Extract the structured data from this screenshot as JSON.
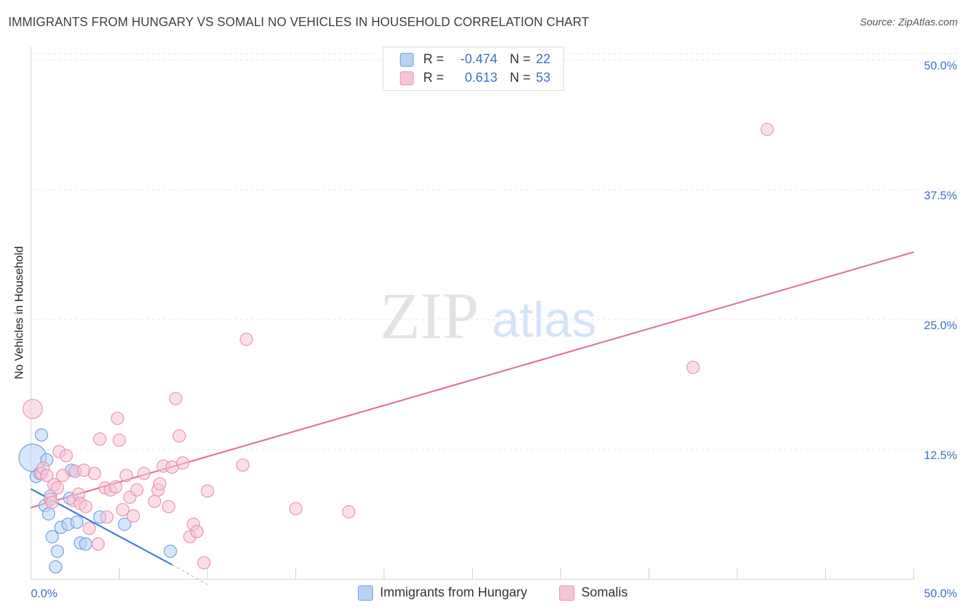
{
  "header": {
    "title": "IMMIGRANTS FROM HUNGARY VS SOMALI NO VEHICLES IN HOUSEHOLD CORRELATION CHART",
    "source": "Source: ZipAtlas.com"
  },
  "watermark": {
    "zip": "ZIP",
    "atlas": "atlas"
  },
  "legend": {
    "series": [
      {
        "r_label": "R =",
        "r_value": "-0.474",
        "n_label": "N =",
        "n_value": "22"
      },
      {
        "r_label": "R =",
        "r_value": "0.613",
        "n_label": "N =",
        "n_value": "53"
      }
    ]
  },
  "colors": {
    "blue_fill": "#b7d2f5",
    "blue_stroke": "#6c9fe0",
    "blue_line": "#3a78d4",
    "pink_fill": "#f7c5d6",
    "pink_stroke": "#ec8fb0",
    "pink_line": "#e07099",
    "tick_text": "#3a6fc4"
  },
  "chart_data": {
    "type": "scatter",
    "title": "IMMIGRANTS FROM HUNGARY VS SOMALI NO VEHICLES IN HOUSEHOLD CORRELATION CHART",
    "ylabel": "No Vehicles in Household",
    "xlim": [
      0,
      50
    ],
    "ylim": [
      0,
      50
    ],
    "x_tick_labels": [
      "0.0%",
      "50.0%"
    ],
    "y_ticks": [
      12.5,
      25,
      37.5,
      50
    ],
    "y_tick_labels": [
      "12.5%",
      "25.0%",
      "37.5%",
      "50.0%"
    ],
    "grid": true,
    "legend_placement": "top-center",
    "series": [
      {
        "name": "Immigrants from Hungary",
        "color": "#6c9fe0",
        "points": [
          [
            0.1,
            11.7,
            20
          ],
          [
            0.3,
            9.9,
            9
          ],
          [
            0.6,
            13.9,
            9
          ],
          [
            0.9,
            11.5,
            9
          ],
          [
            1.1,
            8.0,
            9
          ],
          [
            0.8,
            7.1,
            9
          ],
          [
            2.3,
            10.5,
            9
          ],
          [
            2.2,
            7.8,
            9
          ],
          [
            1.2,
            4.1,
            9
          ],
          [
            1.7,
            5.0,
            9
          ],
          [
            2.1,
            5.3,
            9
          ],
          [
            2.6,
            5.5,
            9
          ],
          [
            1.5,
            2.7,
            9
          ],
          [
            1.4,
            1.2,
            9
          ],
          [
            2.8,
            3.5,
            9
          ],
          [
            3.1,
            3.4,
            9
          ],
          [
            3.9,
            6.0,
            9
          ],
          [
            5.3,
            5.3,
            9
          ],
          [
            7.9,
            2.7,
            9
          ],
          [
            0.5,
            10.2,
            9
          ],
          [
            1.0,
            6.3,
            9
          ],
          [
            2.5,
            10.4,
            9
          ]
        ],
        "trend": {
          "x": [
            0,
            8.0
          ],
          "y": [
            8.7,
            1.4
          ],
          "dash_x": [
            8.0,
            10.0
          ],
          "dash_y": [
            1.4,
            -0.5
          ]
        }
      },
      {
        "name": "Somalis",
        "color": "#ec8fb0",
        "points": [
          [
            0.1,
            16.4,
            14
          ],
          [
            0.6,
            10.2,
            9
          ],
          [
            0.7,
            10.7,
            9
          ],
          [
            1.1,
            7.7,
            9
          ],
          [
            1.3,
            9.1,
            9
          ],
          [
            1.5,
            8.8,
            9
          ],
          [
            1.6,
            12.3,
            9
          ],
          [
            2.0,
            11.9,
            9
          ],
          [
            1.8,
            10.0,
            9
          ],
          [
            2.4,
            7.6,
            9
          ],
          [
            2.5,
            10.4,
            9
          ],
          [
            2.7,
            8.2,
            9
          ],
          [
            2.8,
            7.3,
            9
          ],
          [
            3.0,
            10.5,
            9
          ],
          [
            3.1,
            7.0,
            9
          ],
          [
            3.3,
            4.9,
            9
          ],
          [
            3.6,
            10.2,
            9
          ],
          [
            3.8,
            3.4,
            9
          ],
          [
            3.9,
            13.5,
            9
          ],
          [
            4.2,
            8.8,
            9
          ],
          [
            4.3,
            6.0,
            9
          ],
          [
            4.5,
            8.6,
            9
          ],
          [
            4.8,
            8.9,
            9
          ],
          [
            4.9,
            15.5,
            9
          ],
          [
            5.0,
            13.4,
            9
          ],
          [
            5.2,
            6.7,
            9
          ],
          [
            5.4,
            10.0,
            9
          ],
          [
            5.6,
            7.9,
            9
          ],
          [
            5.8,
            6.1,
            9
          ],
          [
            6.0,
            8.6,
            9
          ],
          [
            6.4,
            10.2,
            9
          ],
          [
            7.0,
            7.5,
            9
          ],
          [
            7.2,
            8.6,
            9
          ],
          [
            7.3,
            9.2,
            9
          ],
          [
            7.5,
            10.9,
            9
          ],
          [
            7.8,
            7.0,
            9
          ],
          [
            8.0,
            10.8,
            9
          ],
          [
            8.2,
            17.4,
            9
          ],
          [
            8.4,
            13.8,
            9
          ],
          [
            8.6,
            11.2,
            9
          ],
          [
            9.0,
            4.1,
            9
          ],
          [
            9.2,
            5.3,
            9
          ],
          [
            9.4,
            4.6,
            9
          ],
          [
            9.8,
            1.6,
            9
          ],
          [
            10.0,
            8.5,
            9
          ],
          [
            12.0,
            11.0,
            9
          ],
          [
            12.2,
            23.1,
            9
          ],
          [
            15.0,
            6.8,
            9
          ],
          [
            18.0,
            6.5,
            9
          ],
          [
            37.5,
            20.4,
            9
          ],
          [
            41.7,
            43.3,
            9
          ],
          [
            0.9,
            10.0,
            9
          ],
          [
            1.2,
            7.4,
            9
          ]
        ],
        "trend": {
          "x": [
            0,
            50
          ],
          "y": [
            6.9,
            31.5
          ]
        }
      }
    ]
  },
  "bottom_legend": {
    "items": [
      {
        "label": "Immigrants from Hungary"
      },
      {
        "label": "Somalis"
      }
    ]
  }
}
